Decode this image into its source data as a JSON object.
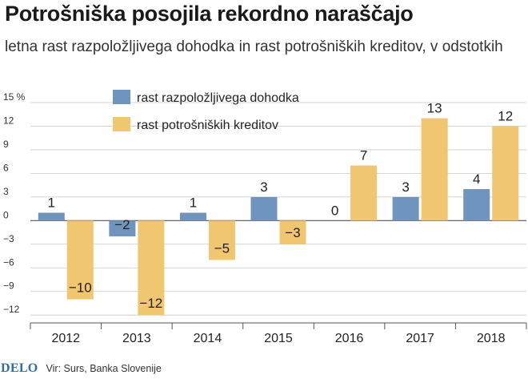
{
  "header": {
    "title": "Potrošniška posojila rekordno naraščajo",
    "subtitle": "letna rast razpoložljivega dohodka in rast potrošniških kreditov, v odstotkih"
  },
  "footer": {
    "logo": "DELO",
    "source": "Vir: Surs, Banka Slovenije"
  },
  "chart_data": {
    "type": "bar",
    "categories": [
      "2012",
      "2013",
      "2014",
      "2015",
      "2016",
      "2017",
      "2018"
    ],
    "series": [
      {
        "name": "rast razpoložljivega dohodka",
        "values": [
          1,
          -2,
          1,
          3,
          0,
          3,
          4
        ],
        "color": "#6f94bd"
      },
      {
        "name": "rast potrošniških kreditov",
        "values": [
          -10,
          -12,
          -5,
          -3,
          7,
          13,
          12
        ],
        "color": "#f0c670"
      }
    ],
    "y_unit": "%",
    "y_ticks": [
      15,
      12,
      9,
      6,
      3,
      0,
      -3,
      -6,
      -9,
      -12
    ],
    "y_tick_labels": [
      "15 %",
      "12",
      "9",
      "6",
      "3",
      "0",
      "−3",
      "−6",
      "−9",
      "−12"
    ],
    "ylim": [
      -13,
      15
    ],
    "grid": true,
    "legend_position": "top"
  }
}
